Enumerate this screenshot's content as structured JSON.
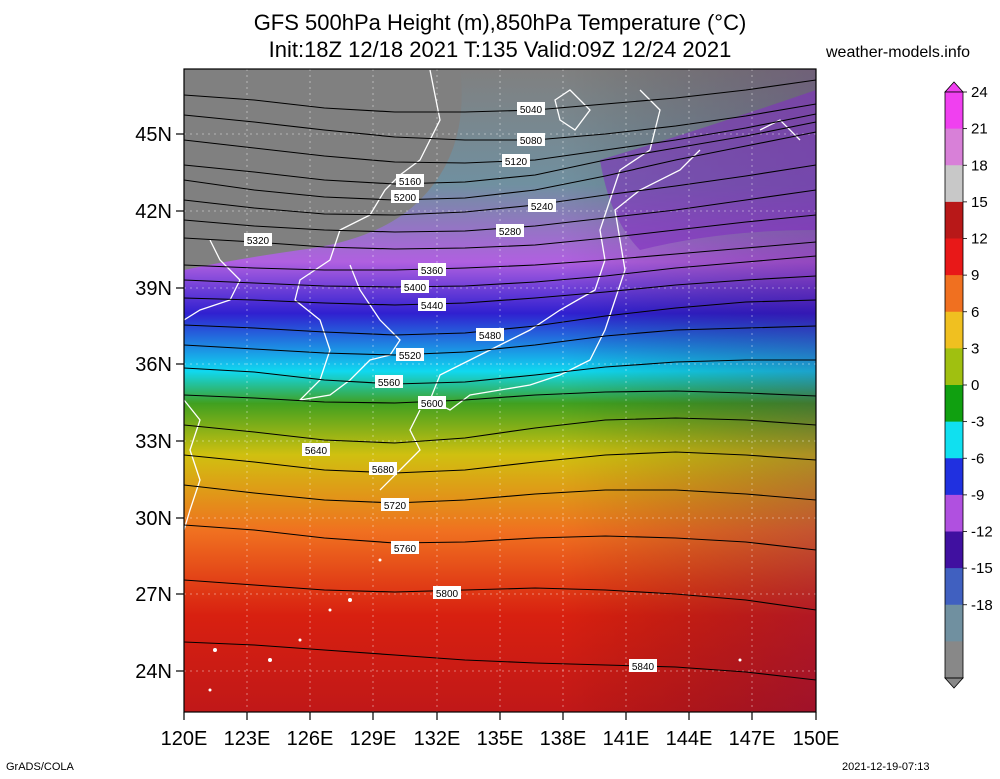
{
  "title_line1": "GFS 500hPa Height (m),850hPa Temperature (°C)",
  "title_line2": "Init:18Z 12/18 2021 T:135 Valid:09Z 12/24 2021",
  "website": "weather-models.info",
  "footer_left": "GrADS/COLA",
  "footer_right": "2021-12-19-07:13",
  "lat_labels": [
    "45N",
    "42N",
    "39N",
    "36N",
    "33N",
    "30N",
    "27N",
    "24N"
  ],
  "lon_labels": [
    "120E",
    "123E",
    "126E",
    "129E",
    "132E",
    "135E",
    "138E",
    "141E",
    "144E",
    "147E",
    "150E"
  ],
  "colorbar": {
    "labels": [
      "24",
      "21",
      "18",
      "15",
      "12",
      "9",
      "6",
      "3",
      "0",
      "-3",
      "-6",
      "-9",
      "-12",
      "-15",
      "-18"
    ],
    "colors": [
      "#f040f0",
      "#d880d8",
      "#c8c8c8",
      "#b81818",
      "#e81818",
      "#f07020",
      "#f0c020",
      "#a0c010",
      "#10a010",
      "#10e0f0",
      "#2030e0",
      "#b050e0",
      "#4010a0",
      "#4060c0",
      "#7090a0",
      "#888888"
    ]
  },
  "contours": [
    {
      "label": "5040"
    },
    {
      "label": "5080"
    },
    {
      "label": "5120"
    },
    {
      "label": "5160"
    },
    {
      "label": "5200"
    },
    {
      "label": "5240"
    },
    {
      "label": "5280"
    },
    {
      "label": "5320"
    },
    {
      "label": "5360"
    },
    {
      "label": "5400"
    },
    {
      "label": "5440"
    },
    {
      "label": "5480"
    },
    {
      "label": "5520"
    },
    {
      "label": "5560"
    },
    {
      "label": "5600"
    },
    {
      "label": "5640"
    },
    {
      "label": "5680"
    },
    {
      "label": "5720"
    },
    {
      "label": "5760"
    },
    {
      "label": "5800"
    },
    {
      "label": "5840"
    }
  ]
}
